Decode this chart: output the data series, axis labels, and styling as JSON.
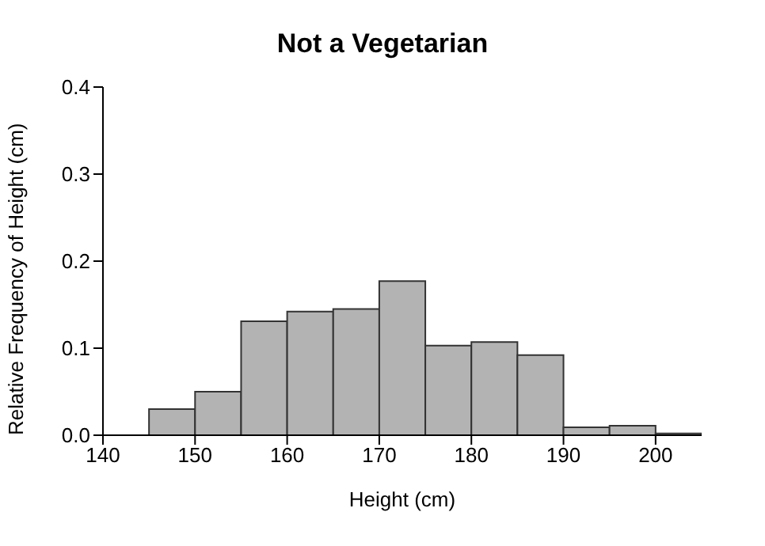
{
  "chart_data": {
    "type": "histogram",
    "title": "Not a Vegetarian",
    "xlabel": "Height (cm)",
    "ylabel": "Relative Frequency of Height (cm)",
    "bins": [
      140,
      145,
      150,
      155,
      160,
      165,
      170,
      175,
      180,
      185,
      190,
      195,
      200,
      205
    ],
    "values": [
      0,
      0.03,
      0.05,
      0.131,
      0.142,
      0.145,
      0.177,
      0.103,
      0.107,
      0.092,
      0.009,
      0.011,
      0.002
    ],
    "color": "#b3b3b3",
    "xlim": [
      140,
      205
    ],
    "xticks": [
      140,
      150,
      160,
      170,
      180,
      190,
      200
    ],
    "ylim": [
      0,
      0.4
    ],
    "yticks": [
      {
        "value": 0,
        "label": "0.0"
      },
      0.1,
      0.2,
      0.3,
      0.4
    ],
    "grid": false
  }
}
